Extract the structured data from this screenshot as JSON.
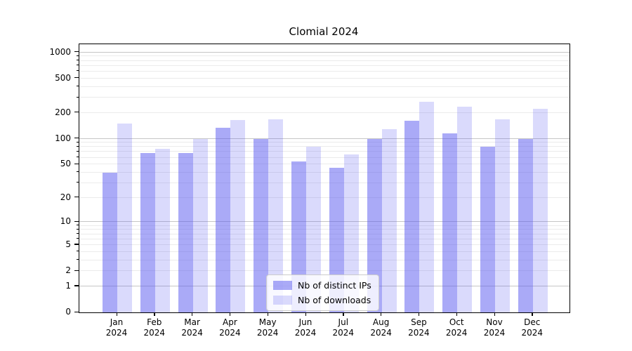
{
  "title": "Clomial 2024",
  "chart_data": {
    "type": "bar",
    "title": "Clomial 2024",
    "categories": [
      "Jan 2024",
      "Feb 2024",
      "Mar 2024",
      "Apr 2024",
      "May 2024",
      "Jun 2024",
      "Jul 2024",
      "Aug 2024",
      "Sep 2024",
      "Oct 2024",
      "Nov 2024",
      "Dec 2024"
    ],
    "series": [
      {
        "name": "Nb of distinct IPs",
        "values": [
          40,
          68,
          68,
          135,
          100,
          54,
          46,
          100,
          163,
          116,
          80,
          100
        ]
      },
      {
        "name": "Nb of downloads",
        "values": [
          150,
          76,
          100,
          165,
          168,
          81,
          65,
          130,
          270,
          236,
          167,
          223
        ]
      }
    ],
    "series_colors": [
      "rgba(85,85,240,0.5)",
      "rgba(85,85,240,0.22)"
    ],
    "yscale": "log1p",
    "yticks": [
      0,
      1,
      2,
      5,
      10,
      20,
      50,
      100,
      200,
      500,
      1000
    ],
    "major_grid_values": [
      1,
      10,
      100,
      1000
    ],
    "ylim": [
      0,
      1240
    ],
    "xlabel": "",
    "ylabel": "",
    "grid": true,
    "legend_position": "lower center"
  },
  "colors": {
    "background": "#ffffff",
    "axis": "#000000",
    "major_grid": "#c6c6c6",
    "minor_grid": "#ebebeb",
    "bar_ips_effective": "#aaaaf6",
    "bar_downloads_effective": "#d9d9f8"
  }
}
